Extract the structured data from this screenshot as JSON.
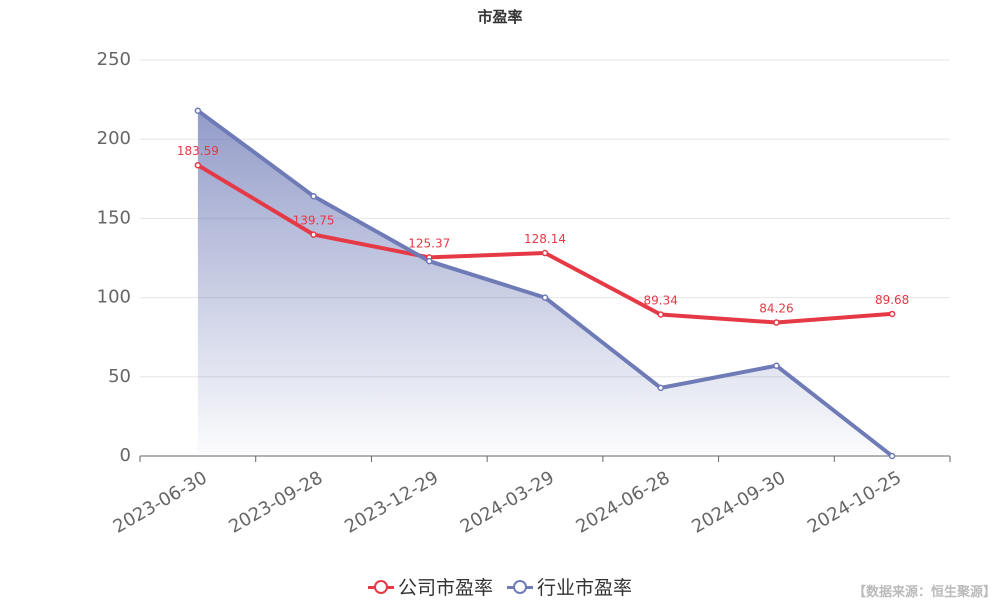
{
  "chart_data": {
    "type": "line",
    "title": "市盈率",
    "categories": [
      "2023-06-30",
      "2023-09-28",
      "2023-12-29",
      "2024-03-29",
      "2024-06-28",
      "2024-09-30",
      "2024-10-25"
    ],
    "series": [
      {
        "name": "公司市盈率",
        "values": [
          183.59,
          139.75,
          125.37,
          128.14,
          89.34,
          84.26,
          89.68
        ],
        "color": "#e63946",
        "data_labels": [
          "183.59",
          "139.75",
          "125.37",
          "128.14",
          "89.34",
          "84.26",
          "89.68"
        ]
      },
      {
        "name": "行业市盈率",
        "values": [
          218,
          164,
          123,
          100,
          43,
          57,
          0
        ],
        "color": "#6f7bb7",
        "area_fill": true
      }
    ],
    "ylim": [
      0,
      250
    ],
    "yticks": [
      "0",
      "50",
      "100",
      "150",
      "200",
      "250"
    ],
    "grid": true,
    "legend_position": "bottom"
  },
  "source_note": "【数据来源：恒生聚源】"
}
